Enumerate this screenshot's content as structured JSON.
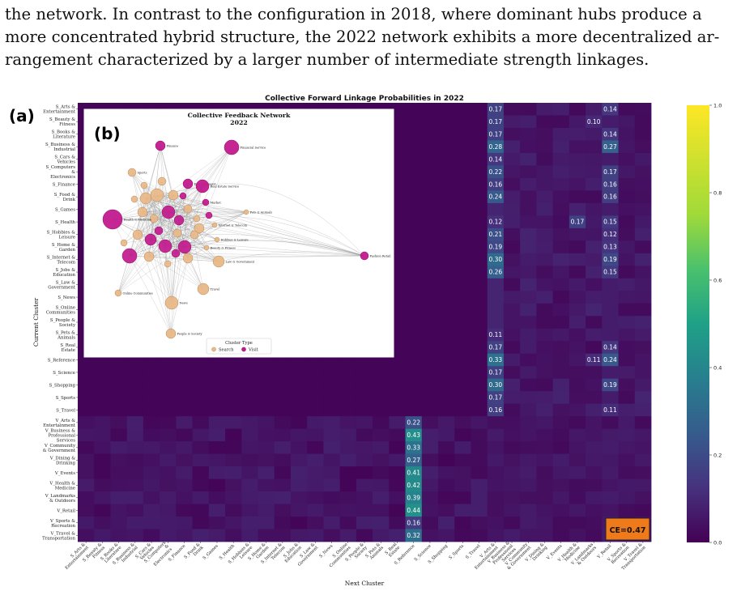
{
  "paragraph": {
    "lines": [
      "the network. In contrast to the configuration in 2018, where dominant hubs produce a",
      "more concentrated hybrid structure, the 2022 network exhibits a more decentralized ar-",
      "rangement characterized by a larger number of intermediate strength linkages."
    ]
  },
  "figure": {
    "panel_a_label": "(a)",
    "panel_b_label": "(b)",
    "ce_badge": "CE=0.47",
    "badge_color": "#ee7a1a"
  },
  "chart_data": [
    {
      "type": "heatmap",
      "title": "Collective Forward Linkage Probabilities in 2022",
      "xlabel": "Next Cluster",
      "ylabel": "Current Cluster",
      "colormap": "viridis",
      "vrange": [
        0.0,
        1.0
      ],
      "colorbar_ticks": [
        "0.0",
        "0.2",
        "0.4",
        "0.6",
        "0.8",
        "1.0"
      ],
      "rows": [
        "S_Arts & Entertainment",
        "S_Beauty & Fitness",
        "S_Books & Literature",
        "S_Business & Industrial",
        "S_Cars & Vehicles",
        "S_Computers & Electronics",
        "S_Finance",
        "S_Food & Drink",
        "S_Games",
        "S_Health",
        "S_Hobbies & Leisure",
        "S_Home & Garden",
        "S_Internet & Telecom",
        "S_Jobs & Education",
        "S_Law & Government",
        "S_News",
        "S_Online Communities",
        "S_People & Society",
        "S_Pets & Animals",
        "S_Real Estate",
        "S_Reference",
        "S_Science",
        "S_Shopping",
        "S_Sports",
        "S_Travel",
        "V_Arts & Entertainment",
        "V_Business & Professional Services",
        "V_Community & Government",
        "V_Dining & Drinking",
        "V_Events",
        "V_Health & Medicine",
        "V_Landmarks & Outdoors",
        "V_Retail",
        "V_Sports & Recreation",
        "V_Travel & Transportation"
      ],
      "columns": [
        "S_Arts & Entertainment",
        "S_Beauty & Fitness",
        "S_Books & Literature",
        "S_Business & Industrial",
        "S_Cars & Vehicles",
        "S_Computers & Electronics",
        "S_Finance",
        "S_Food & Drink",
        "S_Games",
        "S_Health",
        "S_Hobbies & Leisure",
        "S_Home & Garden",
        "S_Internet & Telecom",
        "S_Jobs & Education",
        "S_Law & Government",
        "S_News",
        "S_Online Communities",
        "S_People & Society",
        "S_Pets & Animals",
        "S_Real Estate",
        "S_Reference",
        "S_Science",
        "S_Shopping",
        "S_Sports",
        "S_Travel",
        "V_Arts & Entertainment",
        "V_Business & Professional Services",
        "V_Community & Government",
        "V_Dining & Drinking",
        "V_Events",
        "V_Health & Medicine",
        "V_Landmarks & Outdoors",
        "V_Retail",
        "V_Sports & Recreation",
        "V_Travel & Transportation"
      ],
      "annotated_cells": [
        {
          "row": 0,
          "col": 25,
          "value": 0.17
        },
        {
          "row": 0,
          "col": 32,
          "value": 0.14
        },
        {
          "row": 1,
          "col": 25,
          "value": 0.17
        },
        {
          "row": 1,
          "col": 31,
          "value": 0.1
        },
        {
          "row": 2,
          "col": 25,
          "value": 0.17
        },
        {
          "row": 2,
          "col": 32,
          "value": 0.14
        },
        {
          "row": 3,
          "col": 25,
          "value": 0.28
        },
        {
          "row": 3,
          "col": 32,
          "value": 0.27
        },
        {
          "row": 4,
          "col": 25,
          "value": 0.14
        },
        {
          "row": 5,
          "col": 25,
          "value": 0.22
        },
        {
          "row": 5,
          "col": 32,
          "value": 0.17
        },
        {
          "row": 6,
          "col": 25,
          "value": 0.16
        },
        {
          "row": 6,
          "col": 32,
          "value": 0.16
        },
        {
          "row": 7,
          "col": 25,
          "value": 0.24
        },
        {
          "row": 7,
          "col": 32,
          "value": 0.16
        },
        {
          "row": 9,
          "col": 25,
          "value": 0.12
        },
        {
          "row": 9,
          "col": 30,
          "value": 0.17
        },
        {
          "row": 9,
          "col": 32,
          "value": 0.15
        },
        {
          "row": 10,
          "col": 25,
          "value": 0.21
        },
        {
          "row": 10,
          "col": 32,
          "value": 0.12
        },
        {
          "row": 11,
          "col": 25,
          "value": 0.19
        },
        {
          "row": 11,
          "col": 32,
          "value": 0.13
        },
        {
          "row": 12,
          "col": 25,
          "value": 0.3
        },
        {
          "row": 12,
          "col": 32,
          "value": 0.19
        },
        {
          "row": 13,
          "col": 25,
          "value": 0.26
        },
        {
          "row": 13,
          "col": 32,
          "value": 0.15
        },
        {
          "row": 18,
          "col": 25,
          "value": 0.11
        },
        {
          "row": 19,
          "col": 25,
          "value": 0.17
        },
        {
          "row": 19,
          "col": 32,
          "value": 0.14
        },
        {
          "row": 20,
          "col": 25,
          "value": 0.33
        },
        {
          "row": 20,
          "col": 31,
          "value": 0.11
        },
        {
          "row": 20,
          "col": 32,
          "value": 0.24
        },
        {
          "row": 21,
          "col": 25,
          "value": 0.17
        },
        {
          "row": 22,
          "col": 25,
          "value": 0.3
        },
        {
          "row": 22,
          "col": 32,
          "value": 0.19
        },
        {
          "row": 23,
          "col": 25,
          "value": 0.17
        },
        {
          "row": 24,
          "col": 25,
          "value": 0.16
        },
        {
          "row": 24,
          "col": 32,
          "value": 0.11
        },
        {
          "row": 25,
          "col": 20,
          "value": 0.22
        },
        {
          "row": 26,
          "col": 20,
          "value": 0.43
        },
        {
          "row": 27,
          "col": 20,
          "value": 0.33
        },
        {
          "row": 28,
          "col": 20,
          "value": 0.27
        },
        {
          "row": 29,
          "col": 20,
          "value": 0.41
        },
        {
          "row": 30,
          "col": 20,
          "value": 0.42
        },
        {
          "row": 31,
          "col": 20,
          "value": 0.39
        },
        {
          "row": 32,
          "col": 20,
          "value": 0.44
        },
        {
          "row": 33,
          "col": 20,
          "value": 0.16
        },
        {
          "row": 34,
          "col": 20,
          "value": 0.32
        }
      ],
      "background_value": 0.02
    },
    {
      "type": "network",
      "title": "Collective Feedback Network\n2022",
      "legend_title": "Cluster Type",
      "legend": [
        {
          "label": "Search",
          "color": "#e8b887"
        },
        {
          "label": "Visit",
          "color": "#c21a8d"
        }
      ],
      "nodes": [
        {
          "label": "Finance",
          "type": "Visit"
        },
        {
          "label": "Financial Service",
          "type": "Visit"
        },
        {
          "label": "Sports",
          "type": "Search"
        },
        {
          "label": "Entertainment",
          "type": "Visit"
        },
        {
          "label": "Real Estate Service",
          "type": "Visit"
        },
        {
          "label": "Market",
          "type": "Visit"
        },
        {
          "label": "Pets & Animals",
          "type": "Search"
        },
        {
          "label": "Health & Medicine",
          "type": "Visit"
        },
        {
          "label": "Internet & Telecom",
          "type": "Search"
        },
        {
          "label": "Hobbies & Leisure",
          "type": "Search"
        },
        {
          "label": "Beauty & Fitness",
          "type": "Search"
        },
        {
          "label": "Fashion Retail",
          "type": "Visit"
        },
        {
          "label": "Law & Government",
          "type": "Search"
        },
        {
          "label": "Online Communities",
          "type": "Search"
        },
        {
          "label": "Travel",
          "type": "Search"
        },
        {
          "label": "News",
          "type": "Search"
        },
        {
          "label": "People & Society",
          "type": "Search"
        }
      ]
    }
  ]
}
